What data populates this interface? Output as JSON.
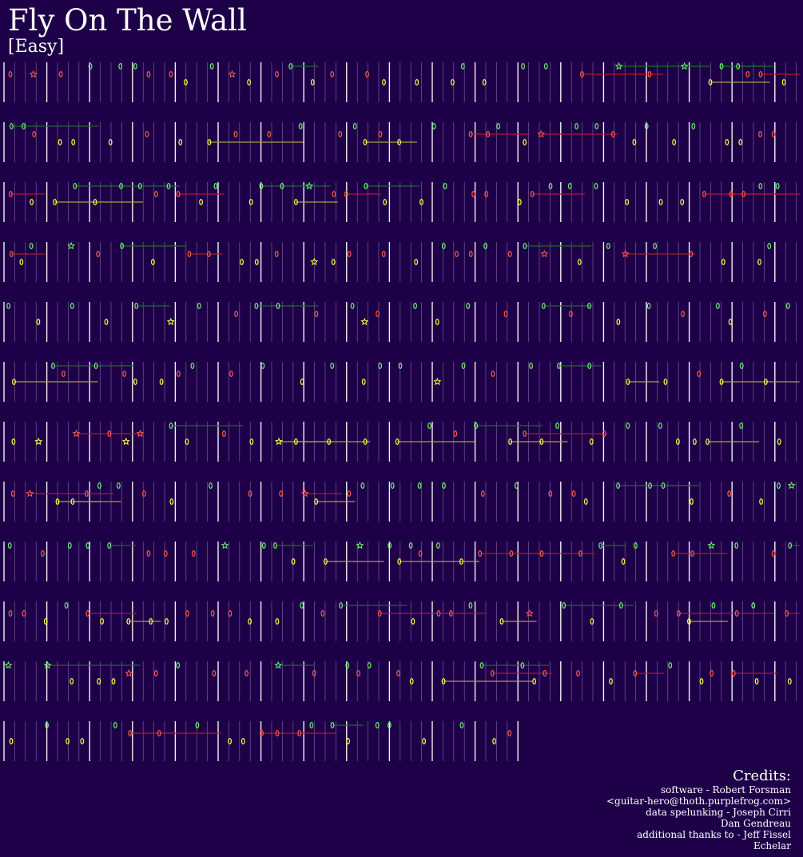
{
  "song": {
    "title": "Fly On The Wall",
    "difficulty": "[Easy]"
  },
  "colors": {
    "background": "#1e0048",
    "green": "#6ef06e",
    "red": "#ff5a4a",
    "yellow": "#ffff40",
    "green_sustain": "#1c6a2c",
    "red_sustain": "#b0182c",
    "yellow_sustain": "#a8a040",
    "beat_line": "#b8a8e0",
    "measure_line": "#ffffff"
  },
  "credits": {
    "heading": "Credits:",
    "lines": [
      "software - Robert Forsman",
      "<guitar-hero@thoth.purplefrog.com>",
      "data spelunking - Joseph Cirri",
      "Dan Gendreau",
      "additional thanks to - Jeff Fissel",
      "Echelar"
    ]
  }
}
